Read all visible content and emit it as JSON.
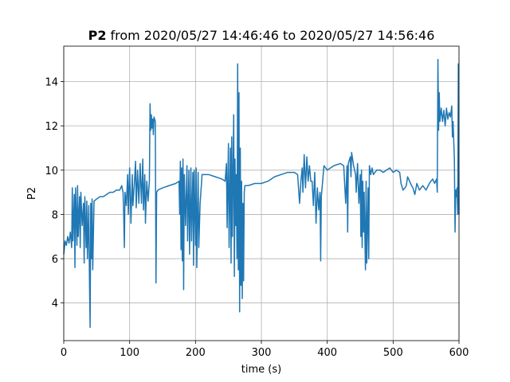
{
  "chart_data": {
    "type": "line",
    "title_bold": "P2",
    "title": "from 2020/05/27 14:46:46 to 2020/05/27 14:56:46",
    "xlabel": "time (s)",
    "ylabel": "P2",
    "color": "#1f77b4",
    "grid": true,
    "xlim": [
      0,
      600
    ],
    "xticks": [
      0,
      100,
      200,
      300,
      400,
      500,
      600
    ],
    "ylim": [
      2.3,
      15.6
    ],
    "yticks": [
      4,
      6,
      8,
      10,
      12,
      14
    ],
    "x": [
      0,
      2,
      4,
      6,
      8,
      10,
      12,
      13,
      14,
      16,
      17,
      18,
      20,
      21,
      22,
      24,
      25,
      26,
      28,
      30,
      31,
      32,
      34,
      35,
      36,
      38,
      39,
      40,
      41,
      42,
      43,
      44,
      46,
      50,
      55,
      60,
      65,
      70,
      75,
      80,
      85,
      88,
      90,
      91,
      92,
      93,
      95,
      97,
      98,
      100,
      102,
      104,
      105,
      107,
      109,
      110,
      112,
      114,
      116,
      118,
      120,
      121,
      123,
      124,
      126,
      128,
      130,
      131,
      132,
      133,
      134,
      135,
      136,
      137,
      138,
      139,
      140,
      141,
      143,
      150,
      160,
      170,
      175,
      176,
      177,
      178,
      179,
      180,
      181,
      182,
      183,
      185,
      187,
      188,
      190,
      191,
      193,
      194,
      196,
      197,
      198,
      200,
      201,
      202,
      204,
      205,
      207,
      210,
      220,
      230,
      240,
      245,
      247,
      248,
      250,
      251,
      253,
      254,
      255,
      256,
      258,
      259,
      260,
      261,
      262,
      263,
      264,
      265,
      266,
      267,
      268,
      269,
      270,
      271,
      272,
      273,
      274,
      275,
      280,
      290,
      300,
      310,
      320,
      330,
      340,
      350,
      355,
      358,
      360,
      362,
      363,
      365,
      367,
      369,
      371,
      373,
      375,
      377,
      379,
      381,
      383,
      385,
      387,
      389,
      390,
      391,
      393,
      395,
      400,
      410,
      420,
      425,
      428,
      430,
      431,
      432,
      435,
      436,
      437,
      440,
      443,
      444,
      446,
      448,
      450,
      451,
      452,
      453,
      454,
      455,
      456,
      458,
      459,
      460,
      462,
      463,
      464,
      466,
      468,
      470,
      475,
      480,
      485,
      490,
      495,
      500,
      505,
      510,
      512,
      515,
      518,
      520,
      522,
      525,
      528,
      530,
      533,
      536,
      540,
      545,
      550,
      555,
      560,
      563,
      566,
      567,
      568,
      569,
      570,
      571,
      573,
      575,
      577,
      579,
      581,
      583,
      585,
      587,
      589,
      590,
      591,
      593,
      594,
      595,
      596,
      597,
      598,
      599,
      600
    ],
    "values": [
      6.2,
      6.8,
      6.6,
      7.0,
      6.7,
      7.2,
      6.5,
      9.2,
      6.8,
      8.9,
      5.6,
      9.2,
      6.6,
      9.3,
      7.0,
      8.8,
      6.5,
      9.0,
      7.5,
      8.5,
      5.8,
      8.8,
      6.5,
      8.6,
      6.0,
      8.4,
      5.2,
      2.9,
      8.5,
      6.0,
      8.7,
      5.5,
      8.6,
      8.7,
      8.8,
      8.8,
      8.9,
      9.0,
      9.0,
      9.1,
      9.1,
      9.3,
      9.0,
      8.0,
      6.5,
      9.0,
      8.4,
      9.8,
      8.0,
      10.1,
      7.6,
      9.8,
      8.4,
      9.3,
      10.4,
      8.3,
      10.0,
      8.5,
      10.3,
      8.5,
      10.5,
      8.2,
      9.8,
      7.6,
      9.5,
      8.6,
      9.5,
      13.0,
      11.8,
      12.5,
      11.9,
      12.3,
      11.6,
      12.4,
      12.3,
      12.2,
      4.9,
      9.0,
      9.1,
      9.2,
      9.3,
      9.4,
      9.5,
      8.0,
      10.4,
      6.4,
      10.1,
      5.9,
      10.5,
      4.6,
      9.8,
      7.5,
      10.2,
      6.8,
      10.0,
      6.2,
      10.1,
      6.8,
      9.9,
      5.7,
      10.0,
      6.6,
      10.1,
      5.6,
      9.9,
      6.5,
      8.5,
      9.8,
      9.8,
      9.7,
      9.6,
      9.5,
      10.3,
      7.4,
      11.2,
      6.5,
      11.0,
      5.8,
      11.5,
      7.0,
      12.5,
      5.2,
      10.5,
      7.5,
      9.8,
      6.0,
      14.8,
      5.5,
      13.5,
      3.6,
      11.0,
      4.8,
      9.5,
      4.2,
      8.5,
      5.0,
      9.0,
      9.3,
      9.3,
      9.4,
      9.4,
      9.5,
      9.7,
      9.8,
      9.9,
      9.9,
      9.8,
      8.5,
      9.5,
      10.1,
      9.0,
      10.7,
      9.2,
      10.6,
      9.5,
      10.2,
      9.5,
      9.5,
      8.4,
      9.9,
      7.6,
      9.2,
      8.2,
      9.0,
      5.9,
      8.8,
      9.5,
      10.2,
      10.0,
      10.2,
      10.3,
      10.2,
      8.5,
      10.2,
      7.2,
      10.3,
      10.6,
      9.7,
      10.8,
      10.2,
      9.8,
      9.0,
      10.3,
      8.5,
      9.8,
      7.0,
      10.0,
      6.5,
      9.5,
      7.2,
      9.0,
      5.5,
      9.5,
      5.8,
      9.2,
      6.0,
      10.2,
      9.8,
      10.1,
      9.8,
      10.0,
      10.0,
      9.9,
      10.0,
      10.1,
      9.9,
      10.0,
      9.9,
      9.4,
      9.1,
      9.2,
      9.3,
      9.7,
      9.5,
      9.3,
      9.2,
      8.9,
      9.4,
      9.1,
      9.3,
      9.1,
      9.4,
      9.6,
      9.4,
      9.6,
      9.0,
      15.0,
      11.8,
      13.5,
      12.2,
      12.8,
      12.2,
      12.7,
      12.0,
      12.8,
      12.3,
      12.6,
      12.4,
      12.9,
      11.5,
      12.2,
      10.5,
      7.2,
      9.1,
      8.8,
      9.2,
      8.0,
      14.8,
      8.0
    ]
  }
}
